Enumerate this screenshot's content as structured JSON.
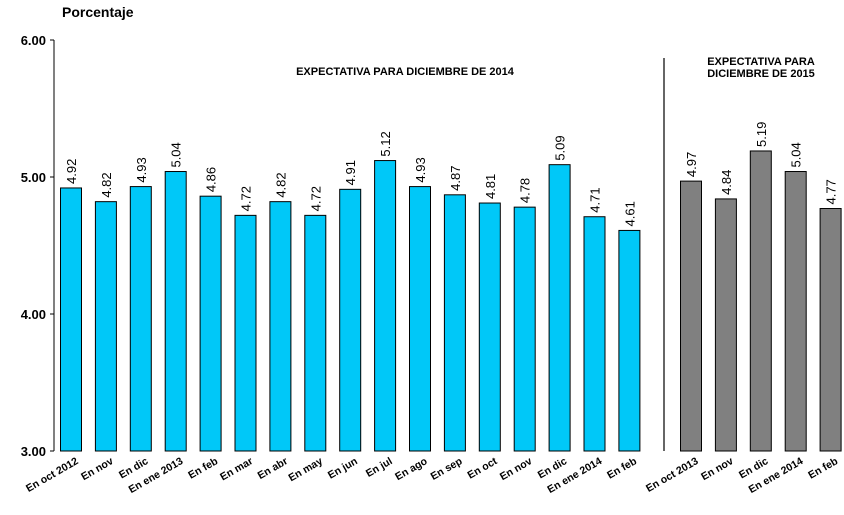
{
  "chart_data": {
    "type": "bar",
    "ylabel": "Porcentaje",
    "ylim": [
      3.0,
      6.0
    ],
    "yticks": [
      "3.00",
      "4.00",
      "5.00",
      "6.00"
    ],
    "grid": false,
    "panels": [
      {
        "title": "EXPECTATIVA PARA DICIEMBRE DE 2014",
        "color": "#00C8F8",
        "categories": [
          "En oct 2012",
          "En nov",
          "En dic",
          "En ene 2013",
          "En feb",
          "En mar",
          "En abr",
          "En may",
          "En jun",
          "En jul",
          "En ago",
          "En sep",
          "En oct",
          "En nov",
          "En dic",
          "En ene 2014",
          "En feb"
        ],
        "values": [
          4.92,
          4.82,
          4.93,
          5.04,
          4.86,
          4.72,
          4.82,
          4.72,
          4.91,
          5.12,
          4.93,
          4.87,
          4.81,
          4.78,
          5.09,
          4.71,
          4.61
        ]
      },
      {
        "title_lines": [
          "EXPECTATIVA PARA",
          "DICIEMBRE DE 2015"
        ],
        "color": "#808080",
        "categories": [
          "En oct 2013",
          "En nov",
          "En dic",
          "En ene 2014",
          "En feb"
        ],
        "values": [
          4.97,
          4.84,
          5.19,
          5.04,
          4.77
        ]
      }
    ]
  }
}
